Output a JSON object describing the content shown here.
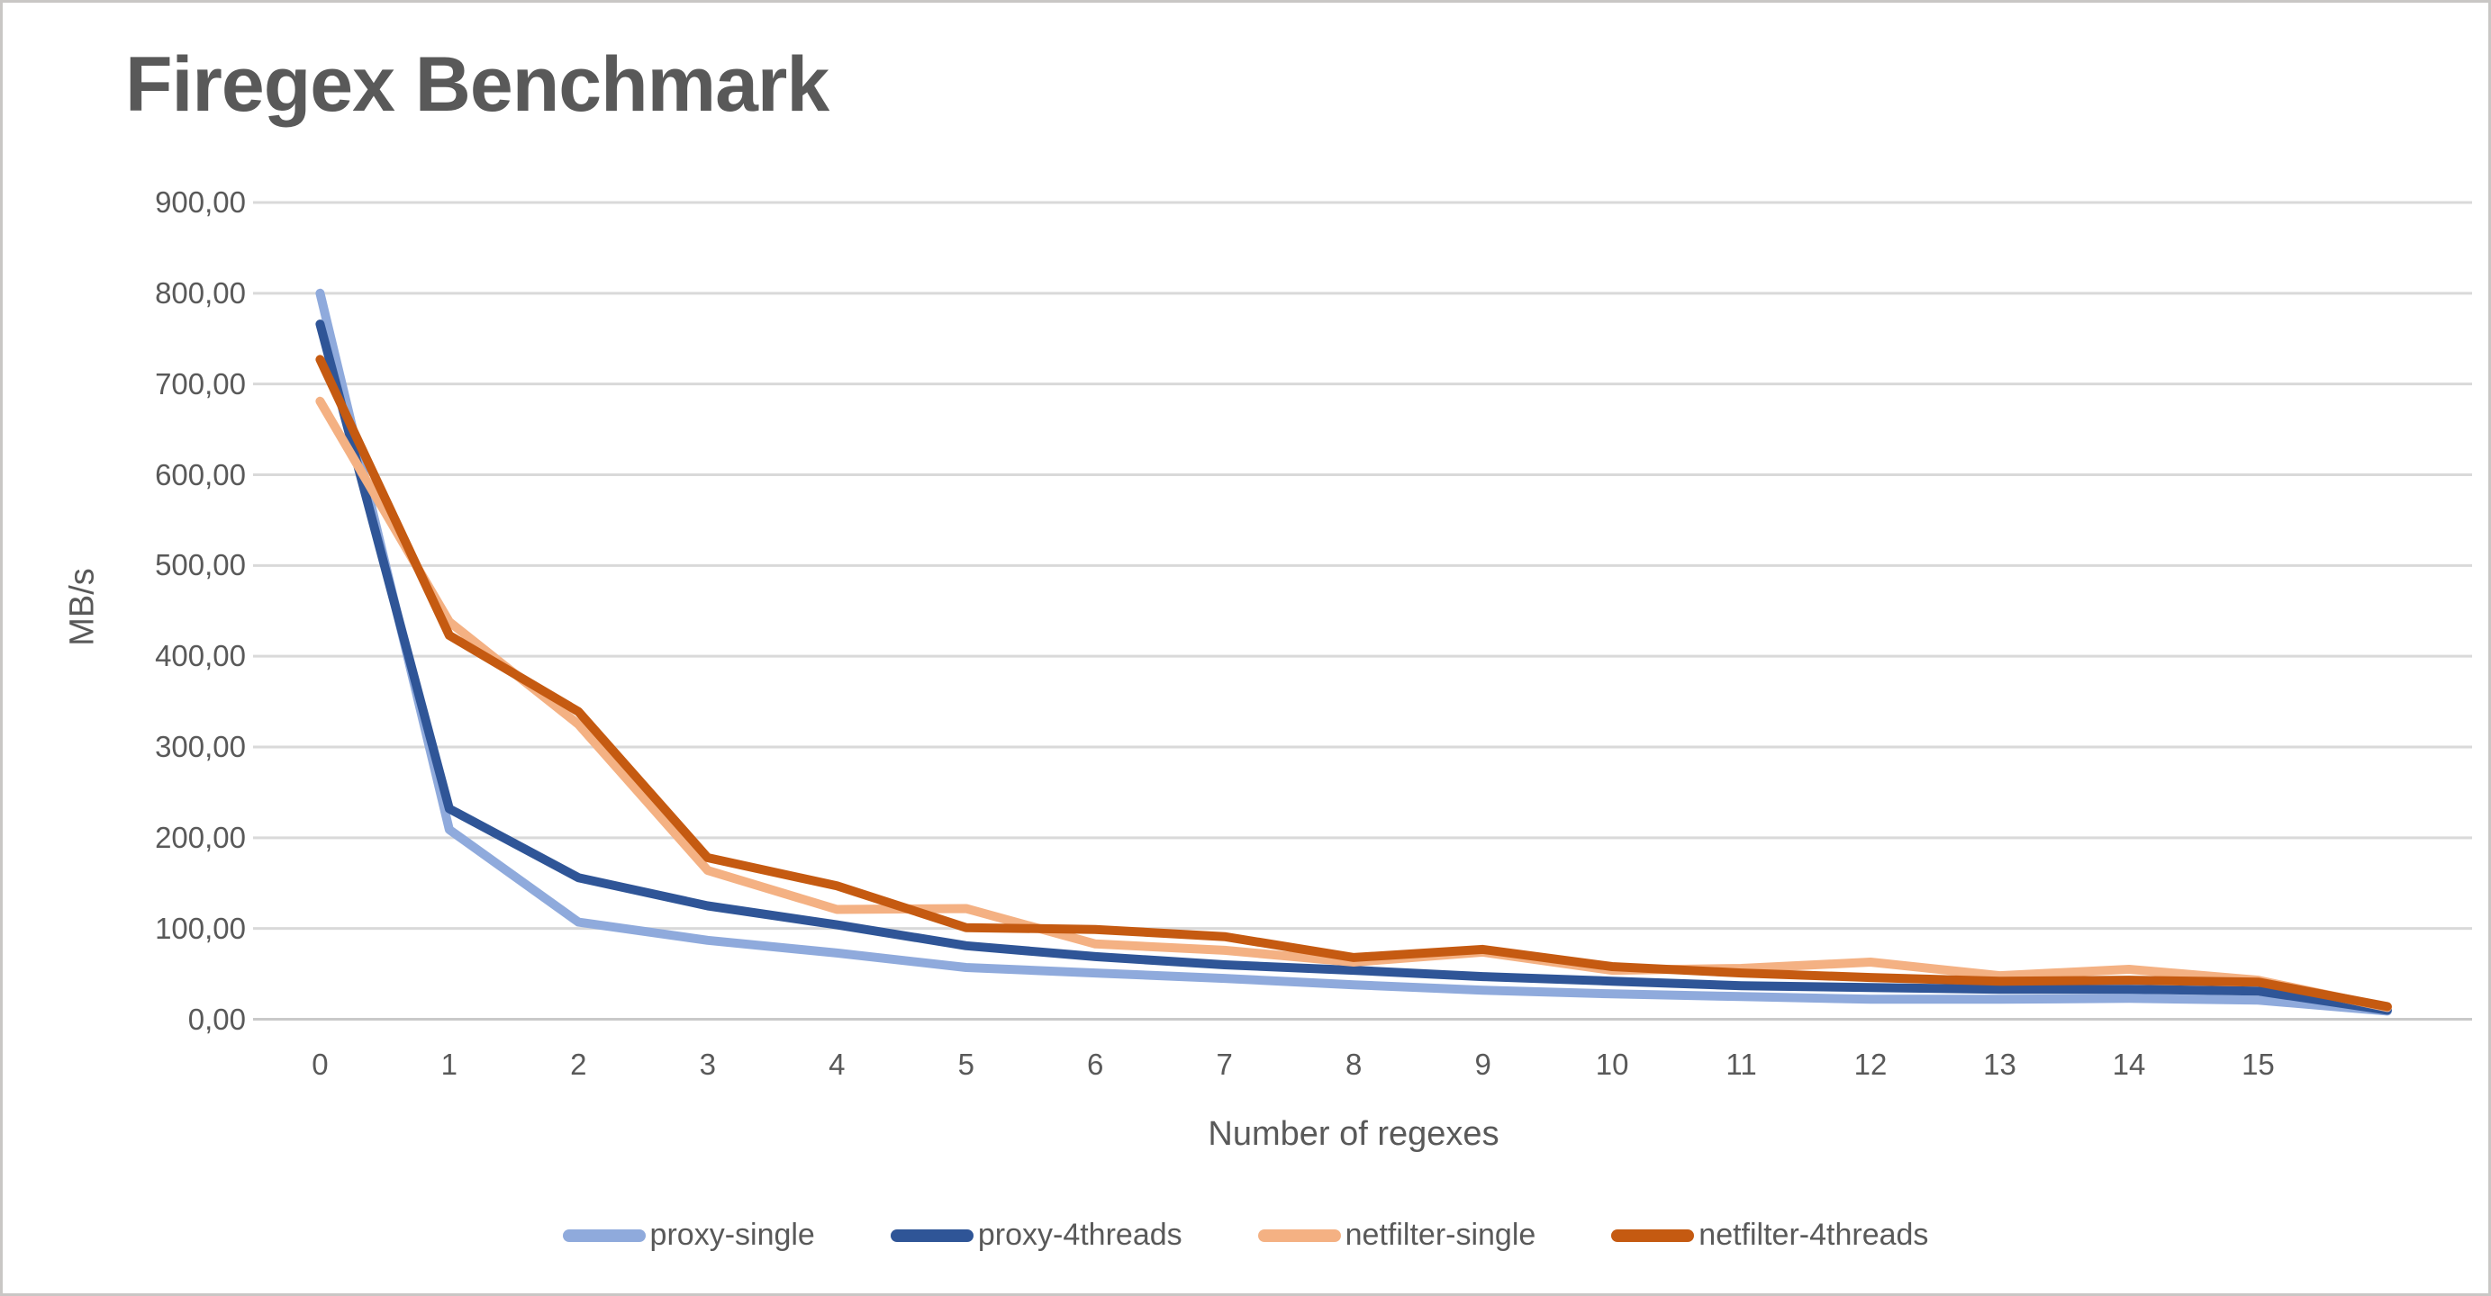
{
  "title": "Firegex Benchmark",
  "colors": {
    "title_text": "#595959",
    "axis_text": "#595959",
    "gridline": "#d9d9d9",
    "axis_line": "#c9c9c9",
    "background": "#ffffff",
    "proxy_single": "#8faadc",
    "proxy_4threads": "#2f5597",
    "netfilter_single": "#f4b183",
    "netfilter_4threads": "#c55a11"
  },
  "chart_data": {
    "type": "line",
    "title": "Firegex Benchmark",
    "xlabel": "Number of regexes",
    "ylabel": "MB/s",
    "x": [
      0,
      1,
      2,
      3,
      4,
      5,
      6,
      7,
      8,
      9,
      10,
      11,
      12,
      13,
      14,
      15,
      16
    ],
    "x_tick_labels": [
      "0",
      "1",
      "2",
      "3",
      "4",
      "5",
      "6",
      "7",
      "8",
      "9",
      "10",
      "11",
      "12",
      "13",
      "14",
      "15",
      ""
    ],
    "y_ticks": [
      "0,00",
      "100,00",
      "200,00",
      "300,00",
      "400,00",
      "500,00",
      "600,00",
      "700,00",
      "800,00",
      "900,00"
    ],
    "ylim": [
      0,
      900
    ],
    "y_tick_step": 100,
    "grid": true,
    "legend_position": "bottom",
    "series": [
      {
        "name": "proxy-single",
        "color": "#8faadc",
        "values": [
          800,
          209,
          107,
          87,
          73,
          57,
          51,
          45,
          38,
          32,
          28,
          25,
          22,
          22,
          23,
          21,
          9
        ]
      },
      {
        "name": "proxy-4threads",
        "color": "#2f5597",
        "values": [
          766,
          232,
          156,
          125,
          104,
          81,
          69,
          60,
          54,
          47,
          42,
          37,
          35,
          33,
          33,
          31,
          10
        ]
      },
      {
        "name": "netfilter-single",
        "color": "#f4b183",
        "values": [
          681,
          438,
          325,
          164,
          121,
          122,
          83,
          76,
          63,
          74,
          54,
          56,
          63,
          48,
          55,
          43,
          13
        ]
      },
      {
        "name": "netfilter-4threads",
        "color": "#c55a11",
        "values": [
          727,
          423,
          339,
          178,
          147,
          101,
          99,
          91,
          68,
          77,
          58,
          51,
          46,
          42,
          43,
          41,
          14
        ]
      }
    ]
  }
}
